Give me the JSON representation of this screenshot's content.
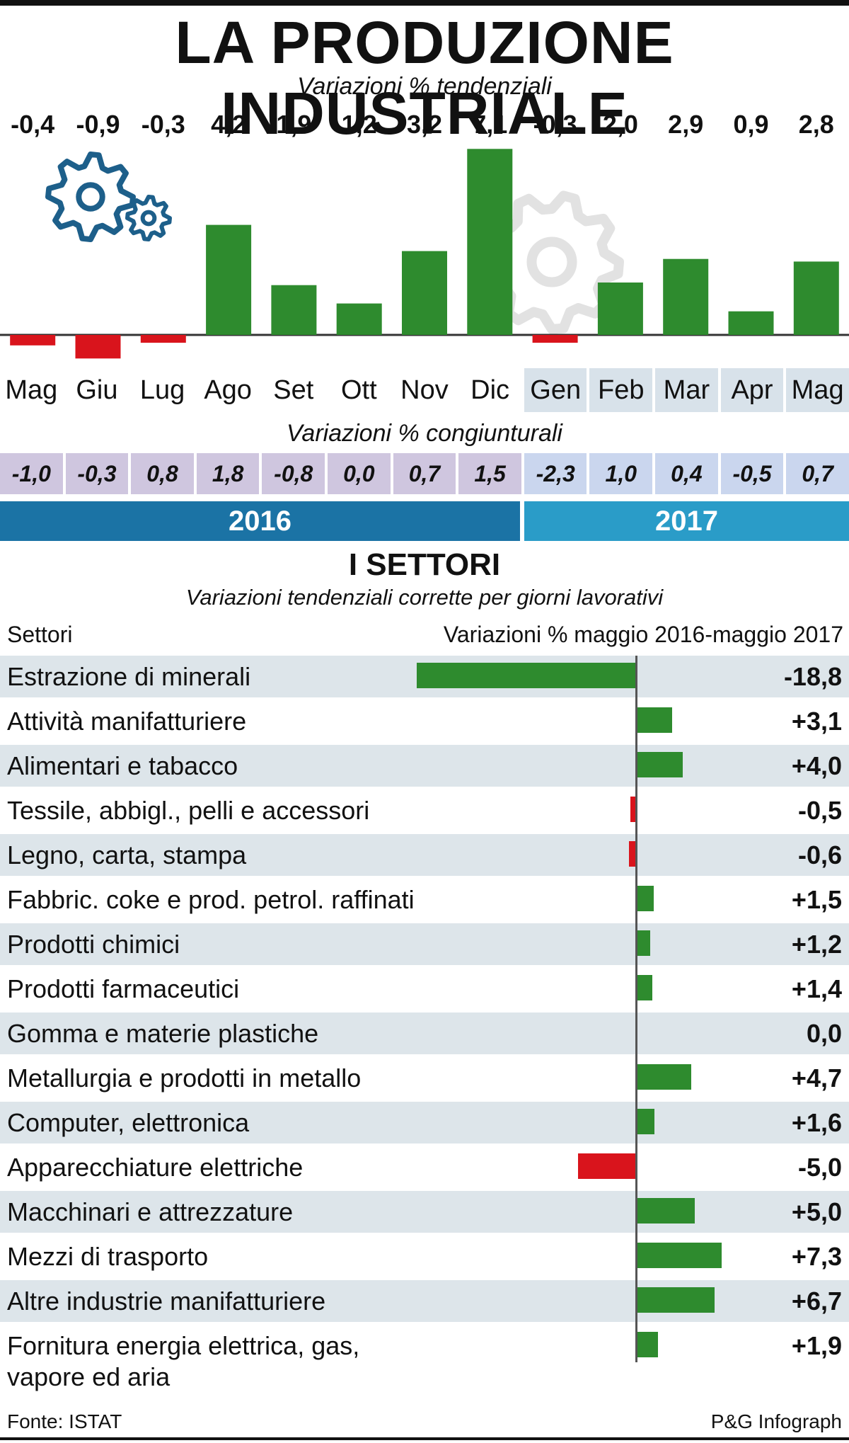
{
  "title": "LA PRODUZIONE INDUSTRIALE",
  "subtitle_tendenziali": "Variazioni % tendenziali",
  "subtitle_congiunturali": "Variazioni % congiunturali",
  "years": [
    "2016",
    "2017"
  ],
  "congiunturali": [
    "-1,0",
    "-0,3",
    "0,8",
    "1,8",
    "-0,8",
    "0,0",
    "0,7",
    "1,5",
    "-2,3",
    "1,0",
    "0,4",
    "-0,5",
    "0,7"
  ],
  "colors": {
    "positive": "#2e8b2e",
    "negative": "#d9141c",
    "year2016": "#1b73a5",
    "year2017": "#2a9cc8",
    "gear": "#1d5f8a"
  },
  "icons": [
    "gear-icon"
  ],
  "sectors_section": {
    "title": "I SETTORI",
    "subtitle": "Variazioni tendenziali corrette per giorni lavorativi",
    "header_left": "Settori",
    "header_right": "Variazioni % maggio 2016-maggio 2017"
  },
  "footer": {
    "source": "Fonte: ISTAT",
    "credit": "P&G Infograph"
  },
  "chart_data": [
    {
      "type": "bar",
      "title": "Variazioni % tendenziali",
      "categories": [
        "Mag",
        "Giu",
        "Lug",
        "Ago",
        "Set",
        "Ott",
        "Nov",
        "Dic",
        "Gen",
        "Feb",
        "Mar",
        "Apr",
        "Mag"
      ],
      "values": [
        -0.4,
        -0.9,
        -0.3,
        4.2,
        1.9,
        1.2,
        3.2,
        7.1,
        -0.3,
        2.0,
        2.9,
        0.9,
        2.8
      ],
      "labels": [
        "-0,4",
        "-0,9",
        "-0,3",
        "4,2",
        "1,9",
        "1,2",
        "3,2",
        "7,1",
        "-0,3",
        "2,0",
        "2,9",
        "0,9",
        "2,8"
      ],
      "years": {
        "2016": [
          "Mag",
          "Giu",
          "Lug",
          "Ago",
          "Set",
          "Ott",
          "Nov",
          "Dic"
        ],
        "2017": [
          "Gen",
          "Feb",
          "Mar",
          "Apr",
          "Mag"
        ]
      }
    },
    {
      "type": "bar",
      "orientation": "horizontal",
      "title": "I SETTORI",
      "categories": [
        "Estrazione di minerali",
        "Attività manifatturiere",
        "Alimentari e tabacco",
        "Tessile, abbigl., pelli e accessori",
        "Legno, carta, stampa",
        "Fabbric. coke e prod. petrol. raffinati",
        "Prodotti chimici",
        "Prodotti farmaceutici",
        "Gomma e materie plastiche",
        "Metallurgia e prodotti in metallo",
        "Computer, elettronica",
        "Apparecchiature elettriche",
        "Macchinari e attrezzature",
        "Mezzi di trasporto",
        "Altre industrie manifatturiere",
        "Fornitura energia elettrica, gas, vapore ed aria"
      ],
      "values": [
        -18.8,
        3.1,
        4.0,
        -0.5,
        -0.6,
        1.5,
        1.2,
        1.4,
        0.0,
        4.7,
        1.6,
        -5.0,
        5.0,
        7.3,
        6.7,
        1.9
      ],
      "labels": [
        "-18,8",
        "+3,1",
        "+4,0",
        "-0,5",
        "-0,6",
        "+1,5",
        "+1,2",
        "+1,4",
        "0,0",
        "+4,7",
        "+1,6",
        "-5,0",
        "+5,0",
        "+7,3",
        "+6,7",
        "+1,9"
      ],
      "bar_colors": [
        "positive",
        "positive",
        "positive",
        "negative",
        "negative",
        "positive",
        "positive",
        "positive",
        "positive",
        "positive",
        "positive",
        "negative",
        "positive",
        "positive",
        "positive",
        "positive"
      ]
    }
  ]
}
